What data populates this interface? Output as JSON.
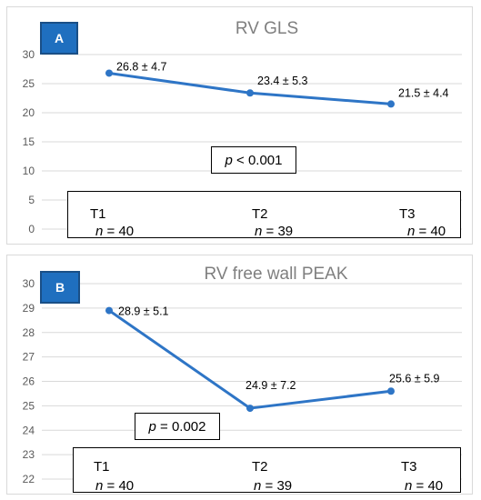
{
  "chart_data": [
    {
      "type": "line",
      "panel_label": "A",
      "title": "RV GLS",
      "categories": [
        "T1",
        "T2",
        "T3"
      ],
      "values": [
        26.8,
        23.4,
        21.5
      ],
      "data_labels": [
        "26.8 ± 4.7",
        "23.4 ± 5.3",
        "21.5 ± 4.4"
      ],
      "yticks": [
        0,
        5,
        10,
        15,
        20,
        25,
        30
      ],
      "ylim": [
        0,
        30
      ],
      "grid": true,
      "color": "#2e75c6",
      "p_value": {
        "italic": "p",
        "rest": " < 0.001"
      },
      "n_labels": [
        "40",
        "39",
        "40"
      ]
    },
    {
      "type": "line",
      "panel_label": "B",
      "title": "RV free wall PEAK",
      "categories": [
        "T1",
        "T2",
        "T3"
      ],
      "values": [
        28.9,
        24.9,
        25.6
      ],
      "data_labels": [
        "28.9 ± 5.1",
        "24.9 ± 7.2",
        "25.6 ± 5.9"
      ],
      "yticks": [
        22,
        23,
        24,
        25,
        26,
        27,
        28,
        29,
        30
      ],
      "ylim": [
        22,
        30
      ],
      "grid": true,
      "color": "#2e75c6",
      "p_value": {
        "italic": "p",
        "rest": " = 0.002"
      },
      "n_labels": [
        "40",
        "39",
        "40"
      ]
    }
  ],
  "n_prefix": "n",
  "n_eq": " = "
}
